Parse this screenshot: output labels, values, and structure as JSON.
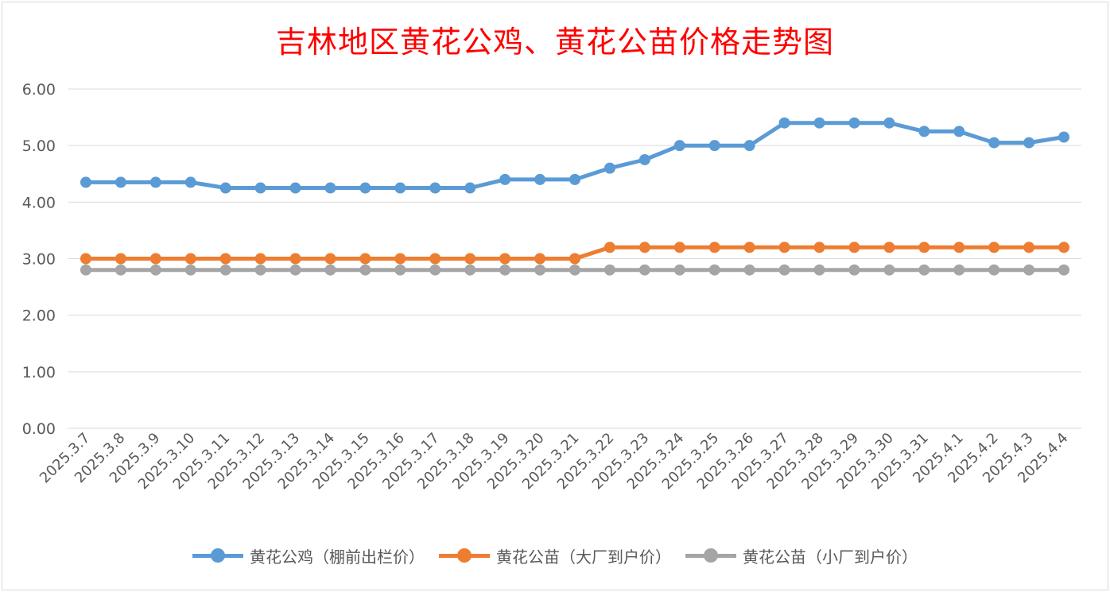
{
  "chart_data": {
    "type": "line",
    "title": "吉林地区黄花公鸡、黄花公苗价格走势图",
    "title_color": "#ff0000",
    "categories": [
      "2025.3.7",
      "2025.3.8",
      "2025.3.9",
      "2025.3.10",
      "2025.3.11",
      "2025.3.12",
      "2025.3.13",
      "2025.3.14",
      "2025.3.15",
      "2025.3.16",
      "2025.3.17",
      "2025.3.18",
      "2025.3.19",
      "2025.3.20",
      "2025.3.21",
      "2025.3.22",
      "2025.3.23",
      "2025.3.24",
      "2025.3.25",
      "2025.3.26",
      "2025.3.27",
      "2025.3.28",
      "2025.3.29",
      "2025.3.30",
      "2025.3.31",
      "2025.4.1",
      "2025.4.2",
      "2025.4.3",
      "2025.4.4"
    ],
    "series": [
      {
        "name": "黄花公鸡（棚前出栏价）",
        "color": "#5b9bd5",
        "values": [
          4.35,
          4.35,
          4.35,
          4.35,
          4.25,
          4.25,
          4.25,
          4.25,
          4.25,
          4.25,
          4.25,
          4.25,
          4.4,
          4.4,
          4.4,
          4.6,
          4.75,
          5.0,
          5.0,
          5.0,
          5.4,
          5.4,
          5.4,
          5.4,
          5.25,
          5.25,
          5.05,
          5.05,
          5.15
        ]
      },
      {
        "name": "黄花公苗（大厂到户价）",
        "color": "#ed7d31",
        "values": [
          3.0,
          3.0,
          3.0,
          3.0,
          3.0,
          3.0,
          3.0,
          3.0,
          3.0,
          3.0,
          3.0,
          3.0,
          3.0,
          3.0,
          3.0,
          3.2,
          3.2,
          3.2,
          3.2,
          3.2,
          3.2,
          3.2,
          3.2,
          3.2,
          3.2,
          3.2,
          3.2,
          3.2,
          3.2
        ]
      },
      {
        "name": "黄花公苗（小厂到户价）",
        "color": "#a5a5a5",
        "values": [
          2.8,
          2.8,
          2.8,
          2.8,
          2.8,
          2.8,
          2.8,
          2.8,
          2.8,
          2.8,
          2.8,
          2.8,
          2.8,
          2.8,
          2.8,
          2.8,
          2.8,
          2.8,
          2.8,
          2.8,
          2.8,
          2.8,
          2.8,
          2.8,
          2.8,
          2.8,
          2.8,
          2.8,
          2.8
        ]
      }
    ],
    "yticks": [
      "0.00",
      "1.00",
      "2.00",
      "3.00",
      "4.00",
      "5.00",
      "6.00"
    ],
    "ylim": [
      0,
      6
    ],
    "grid": true,
    "legend_position": "bottom"
  }
}
